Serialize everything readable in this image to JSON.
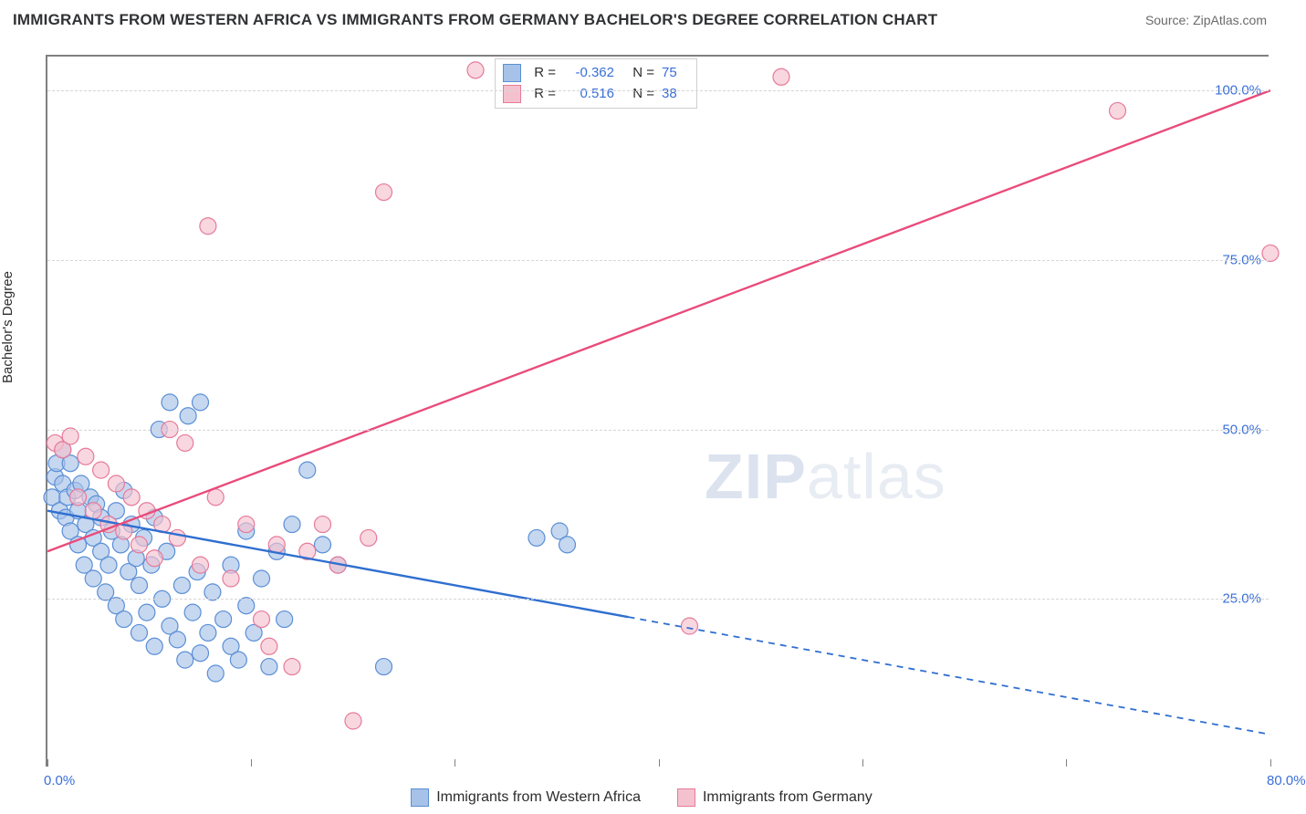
{
  "title": "IMMIGRANTS FROM WESTERN AFRICA VS IMMIGRANTS FROM GERMANY BACHELOR'S DEGREE CORRELATION CHART",
  "source": "Source: ZipAtlas.com",
  "ylabel": "Bachelor's Degree",
  "watermark": "ZIPatlas",
  "chart": {
    "type": "scatter-correlation",
    "background_color": "#ffffff",
    "grid_color": "#d6d6d6",
    "axis_color": "#808080",
    "text_color": "#2c2c2c",
    "link_color": "#3a6fd8",
    "x_range": [
      0,
      80
    ],
    "y_range": [
      0,
      105
    ],
    "y_ticks": [
      25,
      50,
      75,
      100
    ],
    "y_tick_labels": [
      "25.0%",
      "50.0%",
      "75.0%",
      "100.0%"
    ],
    "x_tick_positions": [
      0,
      13.3,
      26.6,
      40,
      53.3,
      66.6,
      80
    ],
    "x_axis_labels": [
      {
        "value": 0,
        "label": "0.0%"
      },
      {
        "value": 80,
        "label": "80.0%"
      }
    ],
    "series": [
      {
        "name": "Immigrants from Western Africa",
        "color_fill": "#a7c2e8",
        "color_stroke": "#5a8fd6",
        "fill_opacity": 0.65,
        "marker_radius": 9,
        "R": "-0.362",
        "N": "75",
        "trend": {
          "x1": 0,
          "y1": 38,
          "x2": 80,
          "y2": 5,
          "solid_until_x": 38
        },
        "trend_color": "#2f6fd0",
        "points": [
          [
            0.3,
            40
          ],
          [
            0.5,
            43
          ],
          [
            0.6,
            45
          ],
          [
            0.8,
            38
          ],
          [
            1.0,
            42
          ],
          [
            1.0,
            47
          ],
          [
            1.2,
            37
          ],
          [
            1.3,
            40
          ],
          [
            1.5,
            35
          ],
          [
            1.5,
            45
          ],
          [
            1.8,
            41
          ],
          [
            2.0,
            33
          ],
          [
            2.0,
            38
          ],
          [
            2.2,
            42
          ],
          [
            2.4,
            30
          ],
          [
            2.5,
            36
          ],
          [
            2.8,
            40
          ],
          [
            3.0,
            28
          ],
          [
            3.0,
            34
          ],
          [
            3.2,
            39
          ],
          [
            3.5,
            32
          ],
          [
            3.5,
            37
          ],
          [
            3.8,
            26
          ],
          [
            4.0,
            30
          ],
          [
            4.2,
            35
          ],
          [
            4.5,
            24
          ],
          [
            4.5,
            38
          ],
          [
            4.8,
            33
          ],
          [
            5.0,
            22
          ],
          [
            5.0,
            41
          ],
          [
            5.3,
            29
          ],
          [
            5.5,
            36
          ],
          [
            5.8,
            31
          ],
          [
            6.0,
            20
          ],
          [
            6.0,
            27
          ],
          [
            6.3,
            34
          ],
          [
            6.5,
            23
          ],
          [
            6.8,
            30
          ],
          [
            7.0,
            18
          ],
          [
            7.0,
            37
          ],
          [
            7.3,
            50
          ],
          [
            7.5,
            25
          ],
          [
            7.8,
            32
          ],
          [
            8.0,
            21
          ],
          [
            8.0,
            54
          ],
          [
            8.5,
            19
          ],
          [
            8.8,
            27
          ],
          [
            9.0,
            16
          ],
          [
            9.2,
            52
          ],
          [
            9.5,
            23
          ],
          [
            9.8,
            29
          ],
          [
            10.0,
            17
          ],
          [
            10.0,
            54
          ],
          [
            10.5,
            20
          ],
          [
            10.8,
            26
          ],
          [
            11.0,
            14
          ],
          [
            11.5,
            22
          ],
          [
            12.0,
            18
          ],
          [
            12.0,
            30
          ],
          [
            12.5,
            16
          ],
          [
            13.0,
            24
          ],
          [
            13.0,
            35
          ],
          [
            13.5,
            20
          ],
          [
            14.0,
            28
          ],
          [
            14.5,
            15
          ],
          [
            15.0,
            32
          ],
          [
            15.5,
            22
          ],
          [
            16.0,
            36
          ],
          [
            17.0,
            44
          ],
          [
            18.0,
            33
          ],
          [
            19.0,
            30
          ],
          [
            22.0,
            15
          ],
          [
            32.0,
            34
          ],
          [
            33.5,
            35
          ],
          [
            34.0,
            33
          ]
        ]
      },
      {
        "name": "Immigrants from Germany",
        "color_fill": "#f4c2cf",
        "color_stroke": "#e67a99",
        "fill_opacity": 0.65,
        "marker_radius": 9,
        "R": "0.516",
        "N": "38",
        "trend": {
          "x1": 0,
          "y1": 32,
          "x2": 80,
          "y2": 100,
          "solid_until_x": 80
        },
        "trend_color": "#e94b7a",
        "points": [
          [
            0.5,
            48
          ],
          [
            1.0,
            47
          ],
          [
            1.5,
            49
          ],
          [
            2.0,
            40
          ],
          [
            2.5,
            46
          ],
          [
            3.0,
            38
          ],
          [
            3.5,
            44
          ],
          [
            4.0,
            36
          ],
          [
            4.5,
            42
          ],
          [
            5.0,
            35
          ],
          [
            5.5,
            40
          ],
          [
            6.0,
            33
          ],
          [
            6.5,
            38
          ],
          [
            7.0,
            31
          ],
          [
            7.5,
            36
          ],
          [
            8.0,
            50
          ],
          [
            8.5,
            34
          ],
          [
            9.0,
            48
          ],
          [
            10.0,
            30
          ],
          [
            10.5,
            80
          ],
          [
            11.0,
            40
          ],
          [
            12.0,
            28
          ],
          [
            13.0,
            36
          ],
          [
            14.0,
            22
          ],
          [
            14.5,
            18
          ],
          [
            15.0,
            33
          ],
          [
            16.0,
            15
          ],
          [
            17.0,
            32
          ],
          [
            18.0,
            36
          ],
          [
            19.0,
            30
          ],
          [
            20.0,
            7
          ],
          [
            21.0,
            34
          ],
          [
            22.0,
            85
          ],
          [
            28.0,
            103
          ],
          [
            42.0,
            21
          ],
          [
            48.0,
            102
          ],
          [
            70.0,
            97
          ],
          [
            80.0,
            76
          ]
        ]
      }
    ],
    "legend_bottom": [
      {
        "label": "Immigrants from Western Africa",
        "fill": "#a7c2e8",
        "stroke": "#5a8fd6"
      },
      {
        "label": "Immigrants from Germany",
        "fill": "#f4c2cf",
        "stroke": "#e67a99"
      }
    ]
  }
}
